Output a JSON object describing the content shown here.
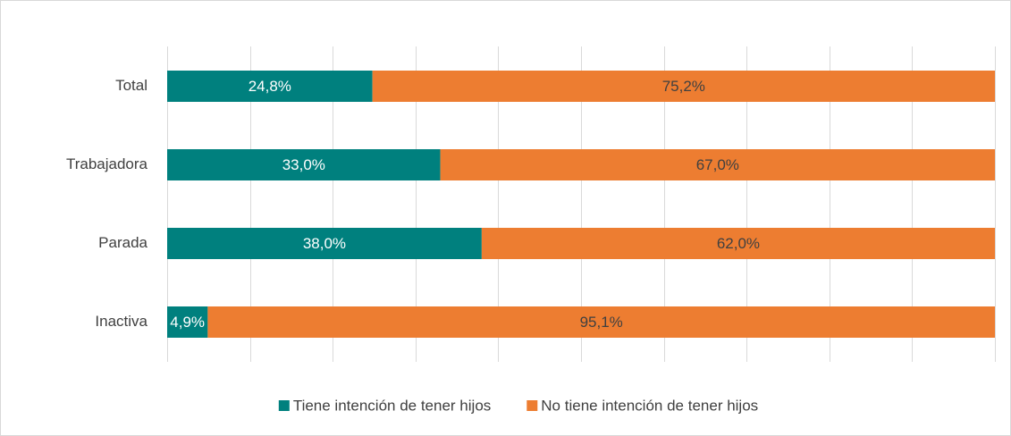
{
  "chart_data": {
    "type": "stacked_bar_horizontal",
    "categories": [
      "Total",
      "Trabajadora",
      "Parada",
      "Inactiva"
    ],
    "series": [
      {
        "name": "Tiene intención de tener hijos",
        "color": "#00807e",
        "values": [
          24.8,
          33.0,
          38.0,
          4.9
        ],
        "value_labels": [
          "24,8%",
          "33,0%",
          "38,0%",
          "4,9%"
        ]
      },
      {
        "name": "No tiene intención de tener hijos",
        "color": "#ed7d31",
        "values": [
          75.2,
          67.0,
          62.0,
          95.1
        ],
        "value_labels": [
          "75,2%",
          "67,0%",
          "62,0%",
          "95,1%"
        ]
      }
    ],
    "xlim": [
      0,
      100
    ],
    "xticks": [
      0,
      10,
      20,
      30,
      40,
      50,
      60,
      70,
      80,
      90,
      100
    ],
    "grid": true,
    "legend": "bottom"
  }
}
